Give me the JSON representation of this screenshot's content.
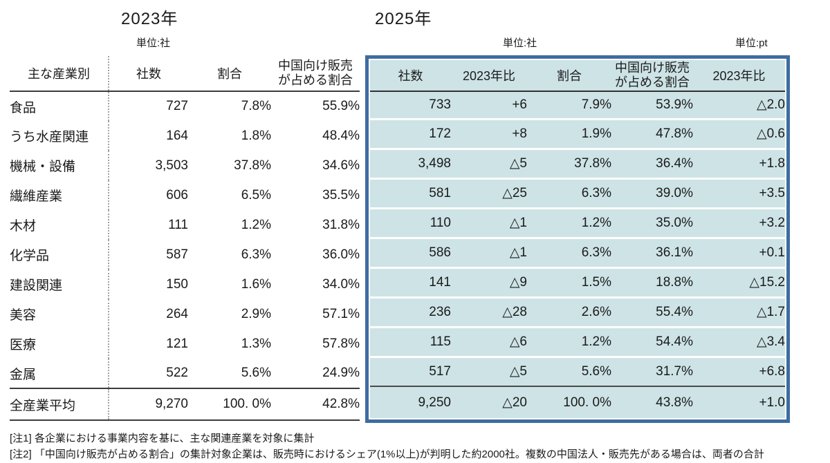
{
  "titles": {
    "left": "2023年",
    "right": "2025年"
  },
  "units": {
    "left_companies": "単位:社",
    "right_companies": "単位:社",
    "right_points": "単位:pt"
  },
  "notes": [
    "[注1] 各企業における事業内容を基に、主な関連産業を対象に集計",
    "[注2] 「中国向け販売が占める割合」の集計対象企業は、販売時におけるシェア(1%以上)が判明した約2000社。複数の中国法人・販売先がある場合は、両者の合計"
  ],
  "colors": {
    "box_border": "#3e6ca1",
    "row_fill": "#cde3e6",
    "separator_dark": "#3b3b3b",
    "dotted_divider": "#a3a3a3"
  },
  "chart_data": [
    {
      "type": "table",
      "title": "2023年",
      "unit": "単位:社",
      "columns": [
        "主な産業別",
        "社数",
        "割合",
        "中国向け販売\nが占める割合"
      ],
      "rows": [
        [
          "食品",
          "727",
          "7.8%",
          "55.9%"
        ],
        [
          "うち水産関連",
          "164",
          "1.8%",
          "48.4%"
        ],
        [
          "機械・設備",
          "3,503",
          "37.8%",
          "34.6%"
        ],
        [
          "繊維産業",
          "606",
          "6.5%",
          "35.5%"
        ],
        [
          "木材",
          "111",
          "1.2%",
          "31.8%"
        ],
        [
          "化学品",
          "587",
          "6.3%",
          "36.0%"
        ],
        [
          "建設関連",
          "150",
          "1.6%",
          "34.0%"
        ],
        [
          "美容",
          "264",
          "2.9%",
          "57.1%"
        ],
        [
          "医療",
          "121",
          "1.3%",
          "57.8%"
        ],
        [
          "金属",
          "522",
          "5.6%",
          "24.9%"
        ]
      ],
      "total_row": [
        "全産業平均",
        "9,270",
        "100. 0%",
        "42.8%"
      ]
    },
    {
      "type": "table",
      "title": "2025年",
      "units": [
        "単位:社",
        "単位:pt"
      ],
      "columns": [
        "社数",
        "2023年比",
        "割合",
        "中国向け販売\nが占める割合",
        "2023年比"
      ],
      "rows": [
        [
          "733",
          "+6",
          "7.9%",
          "53.9%",
          "△2.0"
        ],
        [
          "172",
          "+8",
          "1.9%",
          "47.8%",
          "△0.6"
        ],
        [
          "3,498",
          "△5",
          "37.8%",
          "36.4%",
          "+1.8"
        ],
        [
          "581",
          "△25",
          "6.3%",
          "39.0%",
          "+3.5"
        ],
        [
          "110",
          "△1",
          "1.2%",
          "35.0%",
          "+3.2"
        ],
        [
          "586",
          "△1",
          "6.3%",
          "36.1%",
          "+0.1"
        ],
        [
          "141",
          "△9",
          "1.5%",
          "18.8%",
          "△15.2"
        ],
        [
          "236",
          "△28",
          "2.6%",
          "55.4%",
          "△1.7"
        ],
        [
          "115",
          "△6",
          "1.2%",
          "54.4%",
          "△3.4"
        ],
        [
          "517",
          "△5",
          "5.6%",
          "31.7%",
          "+6.8"
        ]
      ],
      "total_row": [
        "9,250",
        "△20",
        "100. 0%",
        "43.8%",
        "+1.0"
      ]
    }
  ]
}
